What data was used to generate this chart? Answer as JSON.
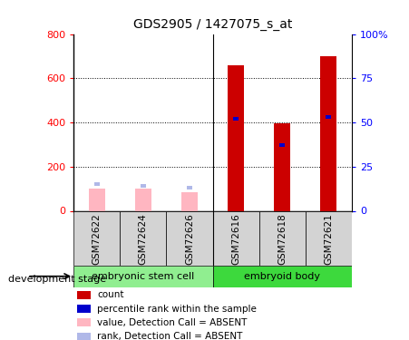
{
  "title": "GDS2905 / 1427075_s_at",
  "samples": [
    "GSM72622",
    "GSM72624",
    "GSM72626",
    "GSM72616",
    "GSM72618",
    "GSM72621"
  ],
  "count_values": [
    100,
    100,
    85,
    660,
    395,
    700
  ],
  "rank_values": [
    15,
    14,
    13,
    52,
    37,
    53
  ],
  "absent": [
    true,
    true,
    true,
    false,
    false,
    false
  ],
  "groups": [
    {
      "label": "embryonic stem cell",
      "start": 0,
      "end": 3,
      "color": "#90EE90"
    },
    {
      "label": "embryoid body",
      "start": 3,
      "end": 6,
      "color": "#3DD93D"
    }
  ],
  "group_label": "development stage",
  "ylim_left": [
    0,
    800
  ],
  "ylim_right": [
    0,
    100
  ],
  "yticks_left": [
    0,
    200,
    400,
    600,
    800
  ],
  "yticks_right": [
    0,
    25,
    50,
    75,
    100
  ],
  "color_present_bar": "#CC0000",
  "color_present_rank": "#0000CC",
  "color_absent_bar": "#FFB6C1",
  "color_absent_rank": "#B0B8E8",
  "bar_width": 0.35,
  "rank_bar_width": 0.12,
  "legend_items": [
    {
      "label": "count",
      "color": "#CC0000"
    },
    {
      "label": "percentile rank within the sample",
      "color": "#0000CC"
    },
    {
      "label": "value, Detection Call = ABSENT",
      "color": "#FFB6C1"
    },
    {
      "label": "rank, Detection Call = ABSENT",
      "color": "#B0B8E8"
    }
  ]
}
